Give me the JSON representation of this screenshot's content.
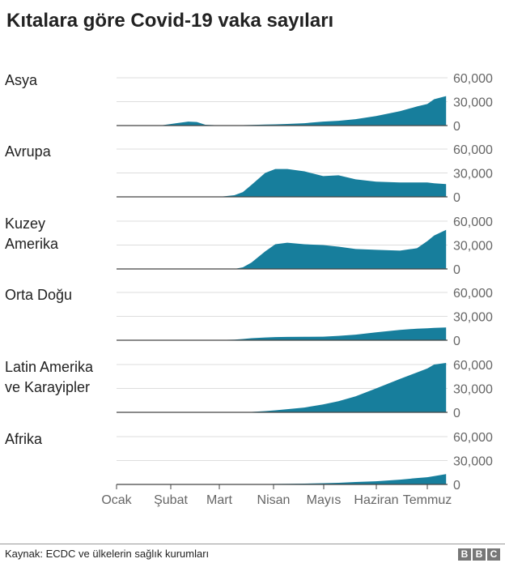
{
  "chart_data": {
    "type": "area",
    "title": "Kıtalara göre Covid-19 vaka sayıları",
    "color": "#177e9c",
    "x_ticks": [
      "Ocak",
      "Şubat",
      "Mart",
      "Nisan",
      "Mayıs",
      "Haziran",
      "Temmuz"
    ],
    "y_ticks": [
      "0",
      "30,000",
      "60,000"
    ],
    "ylim": [
      0,
      60000
    ],
    "grid": true,
    "x": [
      "2020-01-01",
      "2020-01-22",
      "2020-01-28",
      "2020-02-05",
      "2020-02-12",
      "2020-02-17",
      "2020-02-22",
      "2020-03-01",
      "2020-03-10",
      "2020-03-15",
      "2020-03-20",
      "2020-03-28",
      "2020-04-03",
      "2020-04-10",
      "2020-04-20",
      "2020-05-01",
      "2020-05-10",
      "2020-05-20",
      "2020-06-01",
      "2020-06-15",
      "2020-06-25",
      "2020-07-01",
      "2020-07-05",
      "2020-07-12"
    ],
    "series": [
      {
        "name": "Asya",
        "values": [
          0,
          0,
          500,
          3000,
          5000,
          4500,
          1000,
          300,
          300,
          500,
          800,
          1200,
          1500,
          2000,
          3000,
          5000,
          6000,
          8000,
          12000,
          18000,
          24000,
          27000,
          33000,
          37000
        ]
      },
      {
        "name": "Avrupa",
        "values": [
          0,
          0,
          0,
          0,
          0,
          0,
          0,
          0,
          2000,
          6000,
          15000,
          30000,
          35000,
          35000,
          32000,
          26000,
          27000,
          22000,
          19000,
          18000,
          18000,
          18000,
          17000,
          16000
        ]
      },
      {
        "name": "Kuzey Amerika",
        "values": [
          0,
          0,
          0,
          0,
          0,
          0,
          0,
          0,
          0,
          2000,
          8000,
          22000,
          31000,
          33000,
          31000,
          30000,
          28000,
          25000,
          24000,
          23000,
          26000,
          35000,
          42000,
          49000
        ]
      },
      {
        "name": "Orta Doğu",
        "values": [
          0,
          0,
          0,
          0,
          0,
          0,
          0,
          300,
          800,
          1500,
          2500,
          3500,
          4000,
          4200,
          4300,
          4500,
          5500,
          7000,
          10000,
          13000,
          14500,
          15000,
          15500,
          16000
        ]
      },
      {
        "name": "Latin Amerika ve Karayipler",
        "values": [
          0,
          0,
          0,
          0,
          0,
          0,
          0,
          0,
          0,
          200,
          500,
          1500,
          2500,
          4000,
          6000,
          10000,
          14000,
          20000,
          30000,
          42000,
          50000,
          55000,
          60000,
          62000
        ]
      },
      {
        "name": "Afrika",
        "values": [
          0,
          0,
          0,
          0,
          0,
          0,
          0,
          0,
          50,
          100,
          200,
          400,
          600,
          800,
          1000,
          1500,
          2000,
          3000,
          4000,
          6000,
          8000,
          9000,
          10500,
          13000
        ]
      }
    ],
    "row_labels": [
      [
        "Asya"
      ],
      [
        "Avrupa"
      ],
      [
        "Kuzey",
        "Amerika"
      ],
      [
        "Orta Doğu"
      ],
      [
        "Latin Amerika",
        "ve Karayipler"
      ],
      [
        "Afrika"
      ]
    ]
  },
  "footer": {
    "source": "Kaynak: ECDC ve ülkelerin sağlık kurumları",
    "logo": [
      "B",
      "B",
      "C"
    ]
  }
}
